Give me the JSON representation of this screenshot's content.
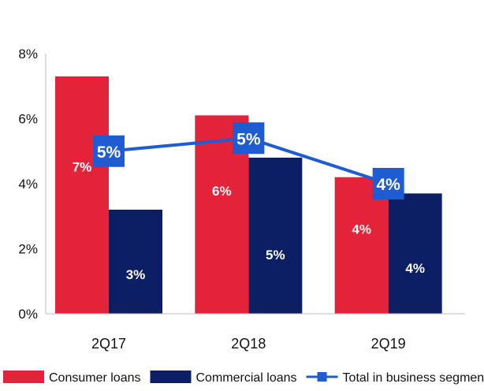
{
  "chart_data": {
    "type": "bar",
    "categories": [
      "2Q17",
      "2Q18",
      "2Q19"
    ],
    "series": [
      {
        "name": "Consumer loans",
        "kind": "bar",
        "color": "#e3233a",
        "values": [
          7.3,
          6.1,
          4.2
        ],
        "labels": [
          "7%",
          "6%",
          "4%"
        ]
      },
      {
        "name": "Commercial loans",
        "kind": "bar",
        "color": "#0c1f64",
        "values": [
          3.2,
          4.8,
          3.7
        ],
        "labels": [
          "3%",
          "5%",
          "4%"
        ]
      },
      {
        "name": "Total in business segments",
        "kind": "line",
        "color": "#1f5bd1",
        "values": [
          5.0,
          5.4,
          4.0
        ],
        "labels": [
          "5%",
          "5%",
          "4%"
        ]
      }
    ],
    "y_ticks": [
      "0%",
      "2%",
      "4%",
      "6%",
      "8%"
    ],
    "ylim": [
      0,
      8
    ],
    "grid": false,
    "legend_position": "bottom",
    "title": "",
    "xlabel": "",
    "ylabel": ""
  }
}
